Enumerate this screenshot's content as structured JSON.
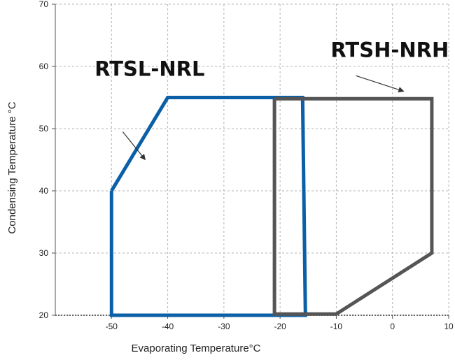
{
  "chart_data": {
    "type": "area",
    "xlabel": "Evaporating Temperature°C",
    "ylabel": "Condensing Temperature °C",
    "xlim": [
      -60,
      10
    ],
    "ylim": [
      20,
      70
    ],
    "x_ticks": [
      -50,
      -40,
      -30,
      -20,
      -10,
      0,
      10
    ],
    "y_ticks": [
      20,
      30,
      40,
      50,
      60,
      70
    ],
    "grid": true,
    "series": [
      {
        "name": "RTSL-NRL",
        "color": "#0a5fa6",
        "points": [
          [
            -50,
            40
          ],
          [
            -40,
            55
          ],
          [
            -16,
            55
          ],
          [
            -15.5,
            20
          ],
          [
            -50,
            20
          ],
          [
            -50,
            40
          ]
        ],
        "annotation": {
          "label": "RTSL-NRL",
          "text_at": [
            -53,
            58.5
          ],
          "arrow_from": [
            -48,
            49.5
          ],
          "arrow_to": [
            -44,
            45
          ]
        }
      },
      {
        "name": "RTSH-NRH",
        "color": "#555555",
        "points": [
          [
            -21,
            54.8
          ],
          [
            7,
            54.8
          ],
          [
            7,
            30
          ],
          [
            -10,
            20.2
          ],
          [
            -21,
            20.2
          ],
          [
            -21,
            54.8
          ]
        ],
        "annotation": {
          "label": "RTSH-NRH",
          "text_at": [
            -11,
            61.5
          ],
          "arrow_from": [
            -6.5,
            58.5
          ],
          "arrow_to": [
            2,
            56
          ]
        }
      }
    ]
  }
}
